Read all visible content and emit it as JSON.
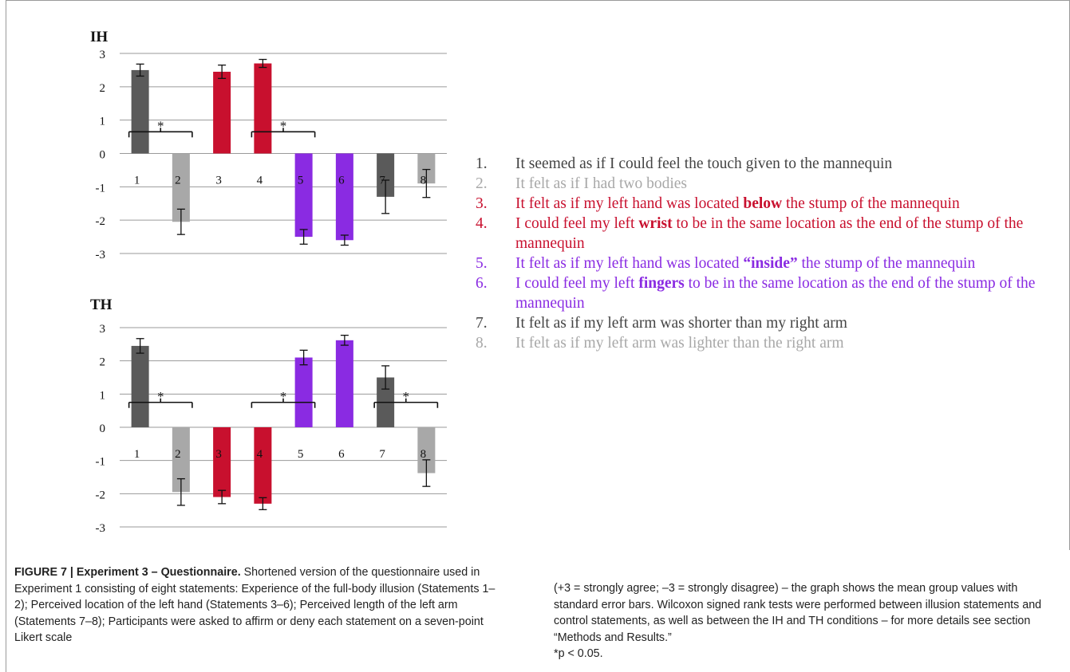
{
  "chart_data": [
    {
      "type": "bar",
      "title": "IH",
      "categories": [
        "1",
        "2",
        "3",
        "4",
        "5",
        "6",
        "7",
        "8"
      ],
      "values": [
        2.5,
        -2.05,
        2.45,
        2.7,
        -2.5,
        -2.6,
        -1.3,
        -0.9
      ],
      "errors": [
        0.18,
        0.38,
        0.2,
        0.12,
        0.22,
        0.15,
        0.5,
        0.42
      ],
      "bar_colors": [
        "#5a5a5a",
        "#a8a8a8",
        "#c8102e",
        "#c8102e",
        "#8a2be2",
        "#8a2be2",
        "#5a5a5a",
        "#a8a8a8"
      ],
      "ylim": [
        -3,
        3
      ],
      "yticks": [
        "3",
        "2",
        "1",
        "0",
        "-1",
        "-2",
        "-3"
      ],
      "grid": true,
      "significance": [
        {
          "from": "1",
          "to": "2",
          "label": "*",
          "y": 0.65
        },
        {
          "from": "4",
          "to": "5",
          "label": "*",
          "y": 0.65
        }
      ]
    },
    {
      "type": "bar",
      "title": "TH",
      "categories": [
        "1",
        "2",
        "3",
        "4",
        "5",
        "6",
        "7",
        "8"
      ],
      "values": [
        2.45,
        -1.95,
        -2.1,
        -2.3,
        2.1,
        2.62,
        1.5,
        -1.38
      ],
      "errors": [
        0.22,
        0.4,
        0.2,
        0.18,
        0.22,
        0.15,
        0.35,
        0.4
      ],
      "bar_colors": [
        "#5a5a5a",
        "#a8a8a8",
        "#c8102e",
        "#c8102e",
        "#8a2be2",
        "#8a2be2",
        "#5a5a5a",
        "#a8a8a8"
      ],
      "ylim": [
        -3,
        3
      ],
      "yticks": [
        "3",
        "2",
        "1",
        "0",
        "-1",
        "-2",
        "-3"
      ],
      "grid": true,
      "significance": [
        {
          "from": "1",
          "to": "2",
          "label": "*",
          "y": 0.75
        },
        {
          "from": "4",
          "to": "5",
          "label": "*",
          "y": 0.75
        },
        {
          "from": "7",
          "to": "8",
          "label": "*",
          "y": 0.75
        }
      ]
    }
  ],
  "statements": [
    {
      "num": "1.",
      "parts": [
        {
          "t": "It seemed as if I could feel the touch given to the mannequin"
        }
      ],
      "color": "#444444"
    },
    {
      "num": "2.",
      "parts": [
        {
          "t": "It felt as if I had two bodies"
        }
      ],
      "color": "#a8a8a8"
    },
    {
      "num": "3.",
      "parts": [
        {
          "t": "It felt as if my left hand was located "
        },
        {
          "t": "below",
          "b": true
        },
        {
          "t": " the stump of the mannequin"
        }
      ],
      "color": "#c8102e"
    },
    {
      "num": "4.",
      "parts": [
        {
          "t": "I could feel my left "
        },
        {
          "t": "wrist",
          "b": true
        },
        {
          "t": " to be in the same location as the end of the stump of the mannequin"
        }
      ],
      "color": "#c8102e"
    },
    {
      "num": "5.",
      "parts": [
        {
          "t": "It felt as if my left hand was located "
        },
        {
          "t": "“inside”",
          "b": true
        },
        {
          "t": " the stump of the mannequin"
        }
      ],
      "color": "#8a2be2"
    },
    {
      "num": "6.",
      "parts": [
        {
          "t": "I could feel my left "
        },
        {
          "t": "fingers",
          "b": true
        },
        {
          "t": " to be in the same location as the end of the stump of the mannequin"
        }
      ],
      "color": "#8a2be2"
    },
    {
      "num": "7.",
      "parts": [
        {
          "t": "It felt as if my left arm was shorter than my right arm"
        }
      ],
      "color": "#444444"
    },
    {
      "num": "8.",
      "parts": [
        {
          "t": "It felt as if my left arm was lighter than the right arm"
        }
      ],
      "color": "#a8a8a8"
    }
  ],
  "caption": {
    "figure_label": "FIGURE 7 | Experiment 3 – Questionnaire.",
    "left_text": " Shortened version of the questionnaire used in Experiment 1 consisting of eight statements: Experience of the full-body illusion (Statements 1–2); Perceived location of the left hand (Statements 3–6); Perceived length of the left arm (Statements 7–8); Participants were asked to affirm or deny each statement on a seven-point Likert scale",
    "right_text": "(+3 = strongly agree; –3 = strongly disagree) – the graph shows the mean group values with standard error bars. Wilcoxon signed rank tests were performed between illusion statements and control statements, as well as between the IH and TH conditions – for more details see section “Methods and Results.”",
    "footnote": "*p < 0.05."
  }
}
